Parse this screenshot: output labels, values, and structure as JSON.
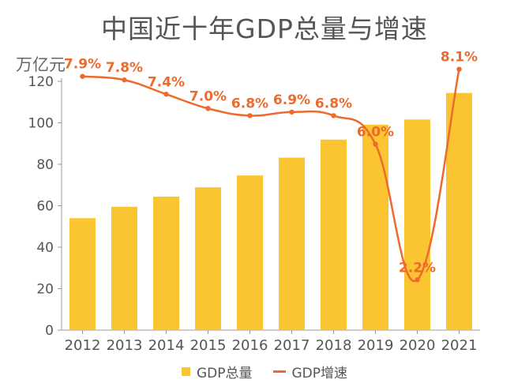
{
  "chart_data": {
    "type": "bar",
    "title": "中国近十年GDP总量与增速",
    "ylabel": "万亿元",
    "xlabel": "",
    "ylim": [
      0,
      120
    ],
    "yticks": [
      0,
      20,
      40,
      60,
      80,
      100,
      120
    ],
    "categories": [
      "2012",
      "2013",
      "2014",
      "2015",
      "2016",
      "2017",
      "2018",
      "2019",
      "2020",
      "2021"
    ],
    "series": [
      {
        "name": "GDP总量",
        "type": "bar",
        "values": [
          54,
          59.5,
          64.4,
          68.9,
          74.6,
          83.2,
          91.9,
          99.1,
          101.6,
          114.4
        ]
      },
      {
        "name": "GDP增速",
        "type": "line",
        "values": [
          7.9,
          7.8,
          7.4,
          7.0,
          6.8,
          6.9,
          6.8,
          6.0,
          2.2,
          8.1
        ],
        "labels": [
          "7.9%",
          "7.8%",
          "7.4%",
          "7.0%",
          "6.8%",
          "6.9%",
          "6.8%",
          "6.0%",
          "2.2%",
          "8.1%"
        ]
      }
    ],
    "legend_position": "bottom",
    "grid": false,
    "colors": {
      "bar": "#FBC531",
      "line": "#EE6A2C",
      "axis": "#999999",
      "text": "#555555"
    }
  }
}
